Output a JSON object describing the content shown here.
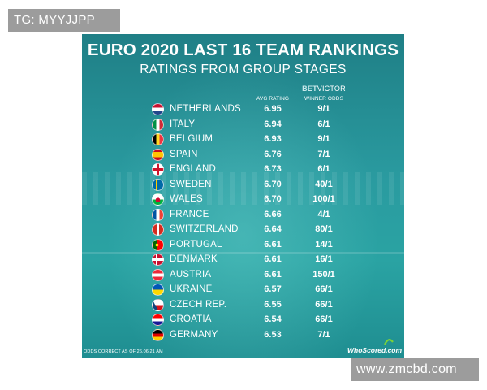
{
  "watermarks": {
    "top": "TG: MYYJJPP",
    "bottom": "www.zmcbd.com"
  },
  "graphic": {
    "title": "EURO 2020 LAST 16 TEAM RANKINGS",
    "subtitle": "RATINGS FROM GROUP STAGES",
    "columns": {
      "rating": "AVG RATING",
      "bookmaker_prefix": "BET",
      "bookmaker_name": "VICTOR",
      "odds": "WINNER ODDS"
    },
    "teams": [
      {
        "country": "NETHERLANDS",
        "rating": "6.95",
        "odds": "9/1",
        "flag": "netherlands-flag-icon"
      },
      {
        "country": "ITALY",
        "rating": "6.94",
        "odds": "6/1",
        "flag": "italy-flag-icon"
      },
      {
        "country": "BELGIUM",
        "rating": "6.93",
        "odds": "9/1",
        "flag": "belgium-flag-icon"
      },
      {
        "country": "SPAIN",
        "rating": "6.76",
        "odds": "7/1",
        "flag": "spain-flag-icon"
      },
      {
        "country": "ENGLAND",
        "rating": "6.73",
        "odds": "6/1",
        "flag": "england-flag-icon"
      },
      {
        "country": "SWEDEN",
        "rating": "6.70",
        "odds": "40/1",
        "flag": "sweden-flag-icon"
      },
      {
        "country": "WALES",
        "rating": "6.70",
        "odds": "100/1",
        "flag": "wales-flag-icon"
      },
      {
        "country": "FRANCE",
        "rating": "6.66",
        "odds": "4/1",
        "flag": "france-flag-icon"
      },
      {
        "country": "SWITZERLAND",
        "rating": "6.64",
        "odds": "80/1",
        "flag": "switzerland-flag-icon"
      },
      {
        "country": "PORTUGAL",
        "rating": "6.61",
        "odds": "14/1",
        "flag": "portugal-flag-icon"
      },
      {
        "country": "DENMARK",
        "rating": "6.61",
        "odds": "16/1",
        "flag": "denmark-flag-icon"
      },
      {
        "country": "AUSTRIA",
        "rating": "6.61",
        "odds": "150/1",
        "flag": "austria-flag-icon"
      },
      {
        "country": "UKRAINE",
        "rating": "6.57",
        "odds": "66/1",
        "flag": "ukraine-flag-icon"
      },
      {
        "country": "CZECH REP.",
        "rating": "6.55",
        "odds": "66/1",
        "flag": "czech-flag-icon"
      },
      {
        "country": "CROATIA",
        "rating": "6.54",
        "odds": "66/1",
        "flag": "croatia-flag-icon"
      },
      {
        "country": "GERMANY",
        "rating": "6.53",
        "odds": "7/1",
        "flag": "germany-flag-icon"
      }
    ],
    "footnote": "ODDS CORRECT AS OF 26.06.21 AM",
    "brand": "WhoScored.com"
  },
  "colors": {
    "background_top": "#1f7f86",
    "background_mid": "#2aa3a3",
    "text": "#ffffff",
    "watermark_bg": "#9c9c9c"
  }
}
